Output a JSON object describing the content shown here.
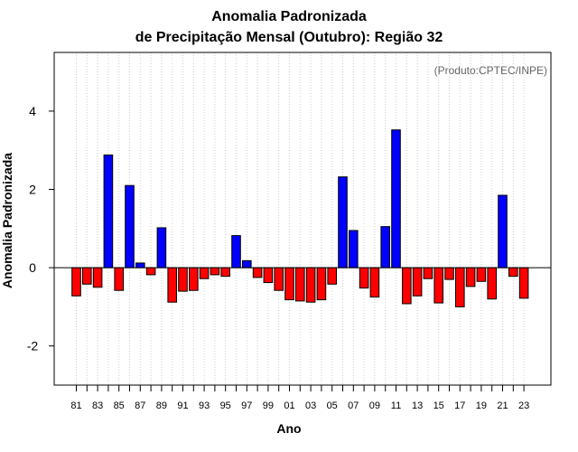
{
  "chart_data": {
    "type": "bar",
    "title_line1": "Anomalia Padronizada",
    "title_line2": "de Precipitação Mensal (Outubro): Região 32",
    "credit": "(Produto:CPTEC/INPE)",
    "xlabel": "Ano",
    "ylabel": "Anomalia Padronizada",
    "ylim": [
      -3,
      5.5
    ],
    "yticks": [
      -2,
      0,
      2,
      4
    ],
    "grid": "vertical dotted",
    "positive_color": "#0000ff",
    "negative_color": "#ff0000",
    "x_tick_labels": [
      "81",
      "83",
      "85",
      "87",
      "89",
      "91",
      "93",
      "95",
      "97",
      "99",
      "01",
      "03",
      "05",
      "07",
      "09",
      "11",
      "13",
      "15",
      "17",
      "19",
      "21",
      "23"
    ],
    "categories": [
      "1981",
      "1982",
      "1983",
      "1984",
      "1985",
      "1986",
      "1987",
      "1988",
      "1989",
      "1990",
      "1991",
      "1992",
      "1993",
      "1994",
      "1995",
      "1996",
      "1997",
      "1998",
      "1999",
      "2000",
      "2001",
      "2002",
      "2003",
      "2004",
      "2005",
      "2006",
      "2007",
      "2008",
      "2009",
      "2010",
      "2011",
      "2012",
      "2013",
      "2014",
      "2015",
      "2016",
      "2017",
      "2018",
      "2019",
      "2020",
      "2021",
      "2022",
      "2023"
    ],
    "values": [
      -0.72,
      -0.42,
      -0.5,
      2.88,
      -0.58,
      2.1,
      0.12,
      -0.18,
      1.02,
      -0.88,
      -0.6,
      -0.58,
      -0.28,
      -0.18,
      -0.22,
      0.82,
      0.18,
      -0.25,
      -0.38,
      -0.58,
      -0.82,
      -0.85,
      -0.88,
      -0.82,
      -0.42,
      2.32,
      0.95,
      -0.52,
      -0.75,
      1.05,
      3.52,
      -0.92,
      -0.72,
      -0.28,
      -0.9,
      -0.3,
      -1.0,
      -0.48,
      -0.35,
      -0.8,
      1.85,
      -0.22,
      -0.78
    ]
  }
}
